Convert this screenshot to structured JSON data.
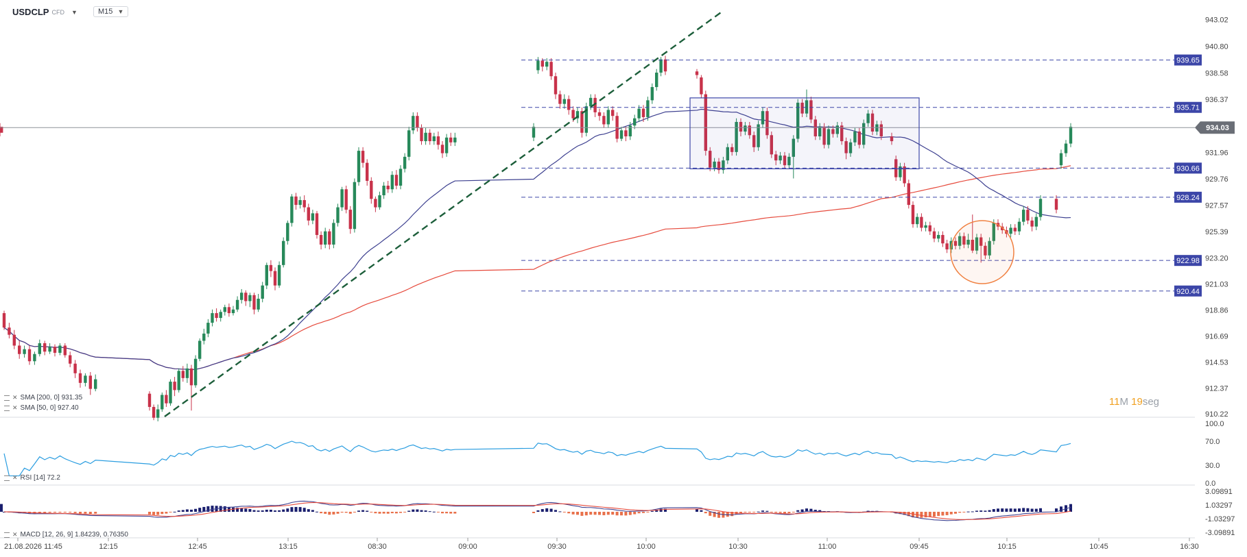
{
  "toolbar": {
    "symbol": "USDCLP",
    "symbol_badge": "CFD",
    "timeframe": "M15"
  },
  "timer": {
    "minutes": "11",
    "min_unit": "M",
    "seconds": "19",
    "sec_unit": "seg"
  },
  "indicators": {
    "sma200_label": "SMA [200, 0] 931.35",
    "sma50_label": "SMA [50, 0] 927.40",
    "rsi_label": "RSI [14] 72.2",
    "macd_label": "MACD [12, 26, 9] 1.84239, 0.76350"
  },
  "colors": {
    "up": "#27895a",
    "down": "#c8324a",
    "sma200": "#e64a3c",
    "sma50": "#3c3f8f",
    "rsi": "#2a9de0",
    "hline": "#3c46a8",
    "price_tag": "#3c46a8",
    "trend": "#1c5e3a",
    "circle": "#f08040"
  },
  "chart_data": {
    "type": "candlestick",
    "price_axis_ticks": [
      "943.02",
      "940.80",
      "938.58",
      "936.37",
      "934.03",
      "931.96",
      "929.76",
      "927.57",
      "925.39",
      "923.20",
      "921.03",
      "918.86",
      "916.69",
      "914.53",
      "912.37",
      "910.22"
    ],
    "rsi_axis_ticks": [
      "100.0",
      "70.0",
      "30.0",
      "0.0"
    ],
    "macd_axis_ticks": [
      "3.09891",
      "1.03297",
      "-1.03297",
      "-3.09891"
    ],
    "time_axis_ticks": [
      "21.08.2026 11:45",
      "12:15",
      "12:45",
      "13:15",
      "08:30",
      "09:00",
      "09:30",
      "10:00",
      "10:30",
      "11:00",
      "09:45",
      "10:15",
      "10:45",
      "16:30"
    ],
    "current_price": 934.03,
    "horizontal_levels": [
      939.65,
      935.71,
      930.66,
      928.24,
      922.98,
      920.44
    ],
    "rectangle": {
      "top": 936.5,
      "bottom": 930.6
    },
    "candles": [
      [
        918.6,
        917.4,
        918.8,
        917.2
      ],
      [
        917.4,
        916.8,
        917.8,
        916.5
      ],
      [
        916.8,
        915.9,
        917.2,
        915.6
      ],
      [
        915.9,
        915.2,
        916.3,
        914.8
      ],
      [
        915.2,
        915.6,
        915.9,
        914.9
      ],
      [
        915.6,
        914.6,
        915.9,
        914.3
      ],
      [
        914.6,
        915.2,
        915.4,
        914.3
      ],
      [
        915.2,
        916.1,
        916.4,
        915.0
      ],
      [
        916.1,
        915.4,
        916.3,
        915.1
      ],
      [
        915.4,
        915.8,
        916.1,
        915.2
      ],
      [
        915.8,
        915.3,
        916.0,
        915.0
      ],
      [
        915.3,
        915.9,
        916.1,
        915.1
      ],
      [
        915.9,
        915.1,
        916.1,
        914.9
      ],
      [
        915.1,
        914.4,
        915.4,
        914.1
      ],
      [
        914.4,
        913.6,
        914.7,
        913.2
      ],
      [
        913.6,
        912.8,
        913.9,
        912.4
      ],
      [
        912.8,
        913.4,
        913.6,
        912.5
      ],
      [
        913.4,
        912.3,
        913.7,
        911.8
      ],
      [
        912.3,
        913.1,
        913.5,
        912.1
      ],
      [
        911.9,
        910.8,
        912.1,
        910.5
      ],
      [
        910.8,
        909.9,
        911.0,
        909.7
      ],
      [
        909.9,
        910.6,
        911.0,
        909.6
      ],
      [
        910.6,
        911.8,
        912.0,
        910.4
      ],
      [
        911.8,
        911.1,
        912.2,
        910.8
      ],
      [
        911.1,
        912.9,
        913.1,
        910.9
      ],
      [
        912.9,
        912.2,
        913.3,
        911.7
      ],
      [
        912.2,
        913.8,
        914.0,
        912.0
      ],
      [
        913.8,
        913.2,
        914.2,
        912.9
      ],
      [
        913.2,
        914.0,
        914.4,
        912.8
      ],
      [
        914.0,
        912.6,
        914.3,
        910.5
      ],
      [
        912.6,
        914.8,
        915.1,
        912.4
      ],
      [
        914.8,
        916.3,
        916.5,
        914.6
      ],
      [
        916.3,
        916.9,
        917.3,
        916.0
      ],
      [
        916.9,
        917.8,
        918.1,
        916.6
      ],
      [
        917.8,
        918.6,
        918.9,
        917.5
      ],
      [
        918.6,
        918.2,
        919.0,
        917.9
      ],
      [
        918.2,
        918.7,
        918.9,
        917.9
      ],
      [
        918.7,
        919.1,
        919.3,
        918.4
      ],
      [
        919.1,
        918.6,
        919.4,
        918.3
      ],
      [
        918.6,
        918.9,
        919.2,
        918.4
      ],
      [
        918.9,
        919.7,
        920.0,
        918.7
      ],
      [
        919.7,
        920.3,
        920.6,
        919.4
      ],
      [
        920.3,
        919.6,
        920.5,
        919.2
      ],
      [
        919.6,
        920.1,
        920.3,
        919.1
      ],
      [
        920.1,
        918.9,
        920.3,
        918.5
      ],
      [
        918.9,
        919.8,
        920.2,
        918.7
      ],
      [
        919.8,
        920.9,
        921.2,
        919.5
      ],
      [
        920.9,
        922.6,
        922.8,
        920.6
      ],
      [
        922.6,
        922.1,
        923.0,
        921.6
      ],
      [
        922.1,
        920.9,
        922.4,
        920.5
      ],
      [
        920.9,
        922.6,
        922.9,
        920.7
      ],
      [
        922.6,
        924.6,
        924.9,
        922.4
      ],
      [
        924.6,
        926.1,
        926.3,
        924.3
      ],
      [
        926.1,
        928.3,
        928.5,
        925.8
      ],
      [
        928.3,
        927.6,
        928.6,
        927.2
      ],
      [
        927.6,
        928.0,
        928.3,
        927.3
      ],
      [
        928.0,
        927.4,
        928.4,
        927.0
      ],
      [
        927.4,
        926.3,
        927.7,
        925.9
      ],
      [
        926.3,
        926.9,
        927.2,
        926.0
      ],
      [
        926.9,
        925.1,
        927.1,
        924.8
      ],
      [
        925.1,
        924.3,
        925.4,
        923.9
      ],
      [
        924.3,
        925.4,
        925.7,
        924.0
      ],
      [
        925.4,
        924.3,
        925.6,
        923.9
      ],
      [
        924.3,
        926.1,
        926.4,
        924.0
      ],
      [
        926.1,
        927.4,
        927.7,
        925.8
      ],
      [
        927.4,
        928.9,
        929.1,
        927.1
      ],
      [
        928.9,
        927.2,
        929.2,
        926.9
      ],
      [
        927.2,
        925.6,
        927.5,
        925.2
      ],
      [
        925.6,
        929.5,
        929.8,
        925.3
      ],
      [
        929.5,
        932.1,
        932.4,
        929.2
      ],
      [
        932.1,
        931.1,
        932.4,
        930.7
      ],
      [
        931.1,
        929.6,
        931.4,
        929.2
      ],
      [
        929.6,
        928.1,
        929.9,
        927.7
      ],
      [
        928.1,
        927.4,
        928.3,
        927.0
      ],
      [
        927.4,
        928.4,
        928.7,
        927.2
      ],
      [
        928.4,
        929.2,
        929.5,
        928.1
      ],
      [
        929.2,
        928.9,
        929.6,
        928.6
      ],
      [
        928.9,
        930.1,
        930.4,
        928.6
      ],
      [
        930.1,
        929.2,
        930.5,
        928.9
      ],
      [
        929.2,
        930.6,
        930.9,
        928.9
      ],
      [
        930.6,
        931.6,
        931.9,
        930.3
      ],
      [
        931.6,
        933.8,
        934.1,
        931.3
      ],
      [
        933.8,
        935.0,
        935.3,
        933.5
      ],
      [
        935.0,
        934.0,
        935.3,
        933.7
      ],
      [
        934.0,
        932.9,
        934.3,
        932.6
      ],
      [
        932.9,
        933.6,
        934.0,
        932.6
      ],
      [
        933.6,
        932.9,
        933.9,
        932.6
      ],
      [
        932.9,
        933.3,
        933.6,
        932.6
      ],
      [
        933.3,
        932.6,
        933.7,
        932.2
      ],
      [
        932.6,
        931.9,
        932.9,
        931.5
      ],
      [
        931.9,
        933.2,
        933.5,
        931.6
      ],
      [
        933.2,
        932.8,
        933.6,
        932.5
      ],
      [
        932.8,
        933.2,
        933.6,
        932.5
      ],
      [
        933.2,
        934.1,
        934.4,
        932.9
      ],
      [
        938.8,
        939.6,
        939.9,
        938.5
      ],
      [
        939.6,
        939.1,
        939.8,
        938.7
      ],
      [
        939.1,
        939.5,
        939.8,
        938.8
      ],
      [
        939.5,
        938.3,
        939.8,
        938.0
      ],
      [
        938.3,
        936.8,
        938.6,
        936.4
      ],
      [
        936.8,
        936.0,
        937.1,
        935.6
      ],
      [
        936.0,
        936.4,
        936.8,
        935.6
      ],
      [
        936.4,
        935.5,
        936.7,
        935.1
      ],
      [
        935.5,
        934.8,
        935.8,
        934.5
      ],
      [
        934.8,
        935.4,
        935.7,
        934.4
      ],
      [
        935.4,
        933.6,
        935.7,
        933.2
      ],
      [
        933.6,
        935.8,
        936.1,
        933.3
      ],
      [
        935.8,
        936.5,
        936.8,
        935.5
      ],
      [
        936.5,
        935.3,
        936.8,
        934.9
      ],
      [
        935.3,
        935.0,
        935.6,
        934.6
      ],
      [
        935.0,
        934.3,
        935.3,
        934.0
      ],
      [
        934.3,
        935.5,
        935.8,
        934.0
      ],
      [
        935.5,
        935.0,
        935.8,
        934.6
      ],
      [
        935.0,
        933.1,
        935.3,
        932.8
      ],
      [
        933.1,
        933.8,
        934.1,
        932.9
      ],
      [
        933.8,
        933.3,
        934.1,
        932.9
      ],
      [
        933.3,
        934.2,
        934.5,
        933.0
      ],
      [
        934.2,
        934.8,
        935.1,
        933.9
      ],
      [
        934.8,
        935.6,
        935.9,
        934.5
      ],
      [
        935.6,
        934.9,
        935.9,
        934.5
      ],
      [
        934.9,
        936.3,
        936.6,
        934.6
      ],
      [
        936.3,
        937.4,
        937.7,
        936.0
      ],
      [
        937.4,
        938.6,
        938.9,
        937.1
      ],
      [
        938.6,
        939.7,
        939.9,
        938.3
      ],
      [
        939.7,
        938.7,
        940.0,
        938.4
      ],
      [
        938.7,
        938.4,
        938.9,
        938.1
      ],
      [
        938.2,
        936.8,
        938.4,
        936.5
      ],
      [
        936.8,
        932.1,
        937.1,
        931.7
      ],
      [
        932.1,
        930.7,
        932.4,
        930.4
      ],
      [
        930.7,
        931.2,
        931.5,
        930.4
      ],
      [
        931.2,
        930.5,
        931.5,
        930.2
      ],
      [
        930.5,
        931.3,
        931.6,
        930.2
      ],
      [
        931.3,
        932.4,
        932.7,
        931.0
      ],
      [
        932.4,
        932.0,
        932.7,
        931.7
      ],
      [
        932.0,
        934.5,
        934.8,
        931.7
      ],
      [
        934.5,
        933.7,
        934.8,
        933.3
      ],
      [
        933.7,
        934.2,
        934.5,
        933.4
      ],
      [
        934.2,
        933.4,
        934.5,
        933.1
      ],
      [
        933.4,
        932.4,
        933.7,
        932.0
      ],
      [
        932.4,
        934.3,
        934.6,
        932.1
      ],
      [
        934.3,
        935.4,
        935.7,
        934.0
      ],
      [
        935.4,
        933.4,
        935.7,
        933.1
      ],
      [
        933.4,
        931.8,
        933.7,
        931.5
      ],
      [
        931.8,
        931.3,
        932.1,
        930.9
      ],
      [
        931.3,
        931.7,
        932.0,
        931.0
      ],
      [
        931.7,
        930.9,
        932.0,
        930.6
      ],
      [
        930.9,
        931.6,
        931.9,
        930.6
      ],
      [
        931.6,
        933.1,
        933.4,
        929.8
      ],
      [
        933.1,
        936.1,
        936.4,
        932.8
      ],
      [
        936.1,
        935.2,
        936.4,
        934.9
      ],
      [
        935.2,
        936.3,
        937.2,
        934.9
      ],
      [
        936.3,
        934.7,
        936.6,
        934.4
      ],
      [
        934.7,
        933.3,
        935.0,
        933.0
      ],
      [
        933.3,
        934.1,
        934.4,
        933.0
      ],
      [
        934.1,
        932.6,
        934.4,
        932.3
      ],
      [
        932.6,
        933.9,
        934.2,
        932.3
      ],
      [
        933.9,
        933.5,
        934.2,
        933.2
      ],
      [
        933.5,
        934.2,
        934.5,
        933.2
      ],
      [
        934.2,
        932.9,
        934.5,
        932.6
      ],
      [
        932.9,
        931.9,
        933.2,
        931.4
      ],
      [
        931.9,
        932.8,
        933.1,
        931.6
      ],
      [
        932.8,
        933.7,
        934.0,
        932.5
      ],
      [
        933.7,
        932.6,
        934.0,
        932.3
      ],
      [
        932.6,
        934.4,
        934.7,
        932.3
      ],
      [
        934.4,
        935.2,
        935.5,
        934.1
      ],
      [
        935.2,
        933.7,
        935.5,
        933.4
      ],
      [
        933.7,
        934.3,
        934.6,
        933.4
      ],
      [
        934.3,
        933.3,
        934.6,
        933.0
      ],
      [
        933.3,
        932.9,
        933.6,
        932.6
      ],
      [
        931.4,
        929.9,
        931.7,
        929.6
      ],
      [
        929.9,
        930.8,
        931.1,
        929.6
      ],
      [
        930.8,
        929.4,
        931.1,
        929.1
      ],
      [
        929.4,
        927.6,
        929.7,
        927.3
      ],
      [
        927.6,
        926.0,
        927.9,
        925.7
      ],
      [
        926.0,
        926.6,
        926.9,
        925.7
      ],
      [
        926.6,
        925.7,
        926.9,
        925.4
      ],
      [
        925.7,
        925.9,
        926.2,
        925.4
      ],
      [
        925.9,
        925.4,
        926.2,
        925.1
      ],
      [
        925.4,
        924.8,
        925.7,
        924.5
      ],
      [
        924.8,
        925.1,
        925.4,
        924.5
      ],
      [
        925.1,
        924.4,
        925.4,
        924.1
      ],
      [
        924.4,
        923.9,
        924.7,
        923.6
      ],
      [
        923.9,
        924.6,
        924.9,
        923.6
      ],
      [
        924.6,
        924.2,
        924.9,
        923.9
      ],
      [
        924.2,
        925.0,
        925.3,
        923.9
      ],
      [
        925.0,
        924.3,
        925.3,
        924.0
      ],
      [
        924.3,
        924.7,
        925.2,
        924.0
      ],
      [
        924.7,
        923.8,
        926.8,
        923.6
      ],
      [
        923.8,
        924.9,
        925.2,
        923.5
      ],
      [
        924.9,
        924.2,
        925.2,
        922.8
      ],
      [
        924.2,
        923.4,
        924.5,
        923.1
      ],
      [
        923.4,
        924.6,
        924.9,
        923.1
      ],
      [
        924.6,
        926.1,
        926.4,
        924.3
      ],
      [
        926.1,
        925.8,
        926.4,
        925.5
      ],
      [
        925.8,
        925.5,
        926.1,
        925.2
      ],
      [
        925.5,
        925.2,
        925.8,
        924.9
      ],
      [
        925.2,
        925.7,
        926.0,
        924.9
      ],
      [
        925.7,
        925.4,
        926.0,
        925.1
      ],
      [
        925.4,
        926.2,
        926.5,
        925.1
      ],
      [
        926.2,
        927.2,
        927.5,
        925.9
      ],
      [
        927.2,
        926.3,
        927.5,
        926.0
      ],
      [
        926.3,
        925.8,
        926.6,
        925.4
      ],
      [
        925.8,
        926.6,
        926.9,
        925.5
      ],
      [
        926.6,
        928.1,
        928.4,
        926.3
      ],
      [
        928.1,
        927.2,
        928.4,
        926.9
      ],
      [
        930.9,
        931.9,
        932.2,
        930.6
      ],
      [
        931.9,
        932.7,
        933.0,
        931.6
      ],
      [
        932.7,
        934.1,
        934.4,
        932.4
      ],
      [
        934.1,
        933.6,
        934.4,
        933.3
      ]
    ]
  }
}
